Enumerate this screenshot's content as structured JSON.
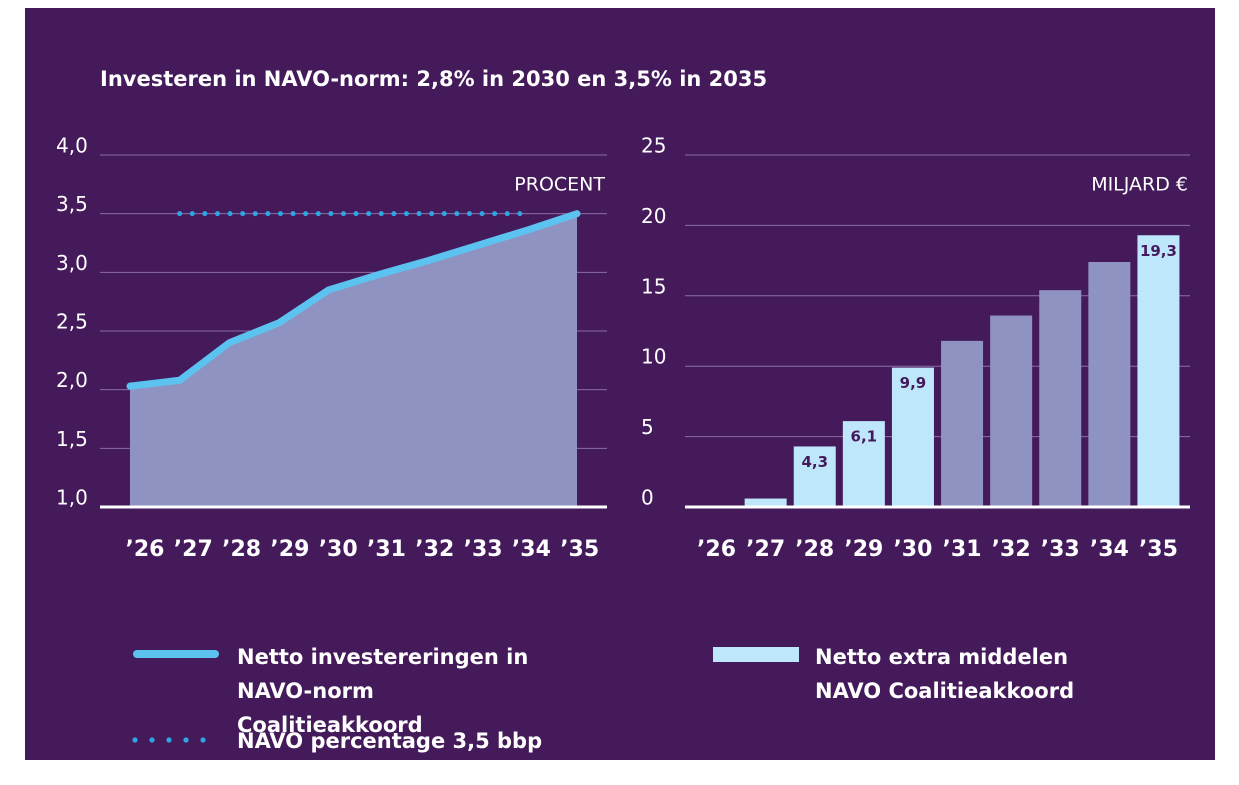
{
  "title": "Investeren in NAVO-norm: 2,8% in 2030 en 3,5% in 2035",
  "chart_data": [
    {
      "type": "line",
      "unit_label": "PROCENT",
      "categories": [
        "’26",
        "’27",
        "’28",
        "’29",
        "’30",
        "’31",
        "’32",
        "’33",
        "’34",
        "’35"
      ],
      "series": [
        {
          "name": "Netto investereringen in NAVO-norm Coalitieakkoord",
          "color": "#5cc3f0",
          "fill": "#8f93c2",
          "style": "solid",
          "values": [
            2.03,
            2.08,
            2.4,
            2.57,
            2.85,
            2.98,
            3.1,
            3.23,
            3.36,
            3.5
          ]
        },
        {
          "name": "NAVO percentage 3,5 bbp",
          "color": "#2fa6e4",
          "style": "dotted",
          "values": [
            null,
            3.5,
            3.5,
            3.5,
            3.5,
            3.5,
            3.5,
            3.5,
            3.5,
            null
          ]
        }
      ],
      "ylim": [
        1.0,
        4.0
      ],
      "yticks": [
        {
          "value": 1.0,
          "label": "1,0"
        },
        {
          "value": 1.5,
          "label": "1,5"
        },
        {
          "value": 2.0,
          "label": "2,0"
        },
        {
          "value": 2.5,
          "label": "2,5"
        },
        {
          "value": 3.0,
          "label": "3,0"
        },
        {
          "value": 3.5,
          "label": "3,5"
        },
        {
          "value": 4.0,
          "label": "4,0"
        }
      ],
      "grid": true
    },
    {
      "type": "bar",
      "unit_label": "MILJARD €",
      "categories": [
        "’26",
        "’27",
        "’28",
        "’29",
        "’30",
        "’31",
        "’32",
        "’33",
        "’34",
        "’35"
      ],
      "series": [
        {
          "name": "Netto extra middelen NAVO Coalitieakkoord",
          "color": "#bfe7fb",
          "colors": [
            "#bfe7fb",
            "#bfe7fb",
            "#bfe7fb",
            "#bfe7fb",
            "#bfe7fb",
            "#8f93c2",
            "#8f93c2",
            "#8f93c2",
            "#8f93c2",
            "#bfe7fb"
          ],
          "values": [
            0,
            0.6,
            4.3,
            6.1,
            9.9,
            11.8,
            13.6,
            15.4,
            17.4,
            19.3
          ],
          "value_labels": [
            null,
            "0,6",
            "4,3",
            "6,1",
            "9,9",
            null,
            null,
            null,
            null,
            "19,3"
          ]
        }
      ],
      "ylim": [
        0,
        25
      ],
      "yticks": [
        0,
        5,
        10,
        15,
        20,
        25
      ],
      "grid": true
    }
  ]
}
